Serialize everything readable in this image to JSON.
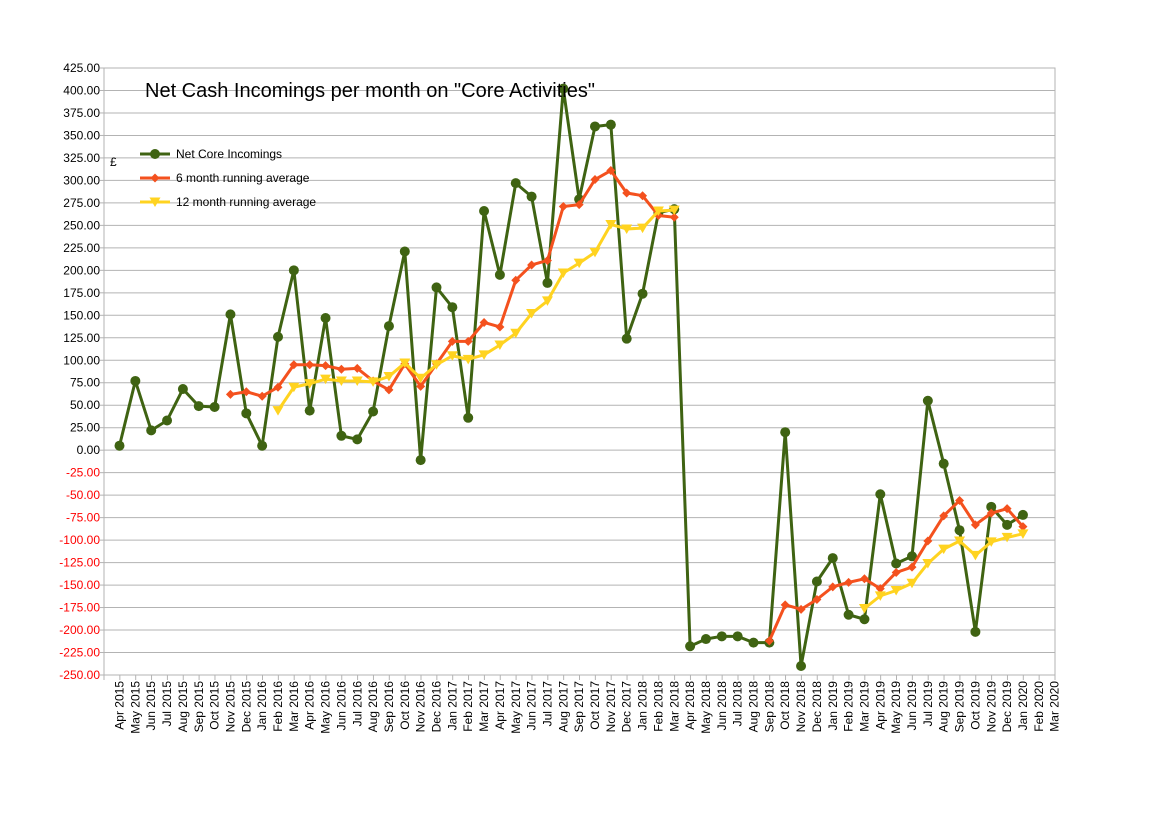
{
  "chart_data": {
    "type": "line",
    "title": "Net Cash Incomings per month on \"Core Activities\"",
    "ylabel": "£",
    "xlabel": "",
    "ylim": [
      -250,
      425
    ],
    "ytick_step": 25,
    "grid": true,
    "legend_position": "top-left",
    "categories": [
      "Apr 2015",
      "May 2015",
      "Jun 2015",
      "Jul 2015",
      "Aug 2015",
      "Sep 2015",
      "Oct 2015",
      "Nov 2015",
      "Dec 2015",
      "Jan 2016",
      "Feb 2016",
      "Mar 2016",
      "Apr 2016",
      "May 2016",
      "Jun 2016",
      "Jul 2016",
      "Aug 2016",
      "Sep 2016",
      "Oct 2016",
      "Nov 2016",
      "Dec 2016",
      "Jan 2017",
      "Feb 2017",
      "Mar 2017",
      "Apr 2017",
      "May 2017",
      "Jun 2017",
      "Jul 2017",
      "Aug 2017",
      "Sep 2017",
      "Oct 2017",
      "Nov 2017",
      "Dec 2017",
      "Jan 2018",
      "Feb 2018",
      "Mar 2018",
      "Apr 2018",
      "May 2018",
      "Jun 2018",
      "Jul 2018",
      "Aug 2018",
      "Sep 2018",
      "Oct 2018",
      "Nov 2018",
      "Dec 2018",
      "Jan 2019",
      "Feb 2019",
      "Mar 2019",
      "Apr 2019",
      "May 2019",
      "Jun 2019",
      "Jul 2019",
      "Aug 2019",
      "Sep 2019",
      "Oct 2019",
      "Nov 2019",
      "Dec 2019",
      "Jan 2020",
      "Feb 2020",
      "Mar 2020"
    ],
    "series": [
      {
        "name": "Net Core Incomings",
        "color": "#3f6312",
        "marker": "circle",
        "values": [
          5,
          77,
          22,
          33,
          68,
          49,
          48,
          151,
          41,
          5,
          126,
          200,
          44,
          147,
          16,
          12,
          43,
          138,
          221,
          -11,
          181,
          159,
          36,
          266,
          195,
          297,
          282,
          186,
          402,
          279,
          360,
          362,
          124,
          174,
          264,
          268,
          -218,
          -210,
          -207,
          -207,
          -214,
          -214,
          20,
          -240,
          -146,
          -120,
          -183,
          -188,
          -49,
          -126,
          -118,
          55,
          -15,
          -89,
          -202,
          -63,
          -83,
          -72,
          null,
          null
        ]
      },
      {
        "name": "6 month running average",
        "color": "#f4511e",
        "marker": "diamond",
        "values": [
          null,
          null,
          null,
          null,
          null,
          null,
          null,
          62,
          65,
          60,
          70,
          95,
          95,
          94,
          90,
          91,
          77,
          67,
          96,
          71,
          96,
          121,
          121,
          142,
          137,
          189,
          206,
          211,
          271,
          273,
          301,
          311,
          286,
          283,
          261,
          259,
          null,
          null,
          null,
          null,
          null,
          -212,
          -172,
          -177,
          -166,
          -152,
          -147,
          -143,
          -154,
          -136,
          -130,
          -101,
          -73,
          -56,
          -83,
          -70,
          -65,
          -85,
          null,
          null
        ]
      },
      {
        "name": "12 month running average",
        "color": "#ffd320",
        "marker": "triangle-down",
        "values": [
          null,
          null,
          null,
          null,
          null,
          null,
          null,
          null,
          null,
          null,
          44,
          70,
          74,
          79,
          77,
          77,
          76,
          82,
          97,
          80,
          95,
          105,
          101,
          106,
          117,
          130,
          152,
          166,
          197,
          208,
          220,
          251,
          246,
          247,
          266,
          267,
          null,
          null,
          null,
          null,
          null,
          null,
          null,
          null,
          null,
          null,
          null,
          -176,
          -162,
          -156,
          -148,
          -126,
          -110,
          -101,
          -117,
          -102,
          -97,
          -93,
          null,
          null
        ]
      }
    ]
  }
}
